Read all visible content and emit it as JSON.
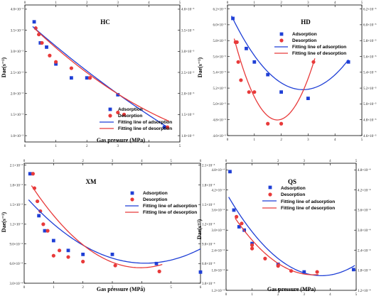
{
  "colors": {
    "adsorption": "#1f3fd6",
    "desorption": "#e83a3a",
    "axis": "#000000"
  },
  "chart_data": [
    {
      "type": "scatter",
      "title": "HC",
      "xlabel": "Gas pressure (MPa)",
      "ylabel": "Dae(s⁻¹)",
      "xlim": [
        0,
        5
      ],
      "ylim": [
        0.00085,
        0.0041
      ],
      "x_ticks": [
        0,
        1,
        2,
        3,
        4,
        5
      ],
      "x_tick_labels": [
        "0",
        "1",
        "2",
        "3",
        "4",
        "5"
      ],
      "y_ticks": [
        0.001,
        0.0015,
        0.002,
        0.0025,
        0.003,
        0.0035,
        0.004
      ],
      "y_tick_labels": [
        "1.0×10⁻³",
        "1.5×10⁻³",
        "2.0×10⁻³",
        "2.5×10⁻³",
        "3.0×10⁻³",
        "3.5×10⁻³",
        "4.0×10⁻³"
      ],
      "grid": false,
      "legend_position": "bottom-right",
      "series": [
        {
          "name": "Adsorption",
          "kind": "points",
          "x": [
            0.3,
            0.5,
            0.7,
            1.0,
            1.5,
            2.0,
            3.0,
            4.5
          ],
          "y": [
            0.0037,
            0.0032,
            0.0031,
            0.0027,
            0.00237,
            0.00237,
            0.00197,
            0.0012
          ]
        },
        {
          "name": "Desorption",
          "kind": "points",
          "x": [
            0.35,
            0.45,
            0.55,
            0.8,
            1.0,
            1.5,
            2.1,
            3.0,
            3.2,
            4.6
          ],
          "y": [
            0.00355,
            0.0034,
            0.0032,
            0.0029,
            0.00275,
            0.0026,
            0.00237,
            0.00155,
            0.0015,
            0.0012
          ]
        },
        {
          "name": "Fitting line of adsorption",
          "kind": "fit",
          "coef": [
            0.003749,
            -0.000648,
            2.05e-05
          ],
          "range": [
            0.25,
            4.55
          ]
        },
        {
          "name": "Fitting line of desorption",
          "kind": "fit",
          "coef": [
            0.003761,
            -0.000719,
            4.28e-05
          ],
          "range": [
            0.3,
            4.65
          ]
        }
      ]
    },
    {
      "type": "scatter",
      "title": "HD",
      "xlabel": "Gas pressure (MPa)",
      "ylabel": "Dae(s⁻¹)",
      "xlim": [
        0,
        5
      ],
      "ylim": [
        4.6e-05,
        6.25e-05
      ],
      "x_ticks": [
        0,
        1,
        2,
        3,
        4,
        5
      ],
      "x_tick_labels": [
        "0",
        "1",
        "2",
        "3",
        "4",
        "5"
      ],
      "y_ticks": [
        4.6e-05,
        4.8e-05,
        5e-05,
        5.2e-05,
        5.4e-05,
        5.6e-05,
        5.8e-05,
        6e-05,
        6.2e-05
      ],
      "y_tick_labels": [
        "4.6×10⁻⁵",
        "4.8×10⁻⁵",
        "5.0×10⁻⁵",
        "5.2×10⁻⁵",
        "5.4×10⁻⁵",
        "5.6×10⁻⁵",
        "5.8×10⁻⁵",
        "6.0×10⁻⁵",
        "6.2×10⁻⁵"
      ],
      "grid": false,
      "legend_position": "top-right",
      "series": [
        {
          "name": "Adsorption",
          "kind": "points",
          "x": [
            0.2,
            0.7,
            1.0,
            1.5,
            2.0,
            3.0,
            4.5
          ],
          "y": [
            6.08e-05,
            5.7e-05,
            5.53e-05,
            5.37e-05,
            5.15e-05,
            5.07e-05,
            5.53e-05
          ]
        },
        {
          "name": "Desorption",
          "kind": "points",
          "x": [
            0.3,
            0.35,
            0.4,
            0.5,
            0.8,
            1.0,
            1.5,
            2.0,
            3.2
          ],
          "y": [
            5.78e-05,
            5.78e-05,
            5.53e-05,
            5.3e-05,
            5.15e-05,
            5.15e-05,
            4.75e-05,
            4.75e-05,
            5.53e-05
          ]
        },
        {
          "name": "Fitting line of adsorption",
          "kind": "fit",
          "coef": [
            6.22e-05,
            -7.41e-06,
            1.32e-06
          ],
          "range": [
            0.15,
            4.5
          ]
        },
        {
          "name": "Fitting line of desorption",
          "kind": "fit",
          "coef": [
            6.17e-05,
            -1.48e-05,
            3.99e-06
          ],
          "range": [
            0.25,
            3.25
          ]
        }
      ]
    },
    {
      "type": "scatter",
      "title": "XM",
      "xlabel": "Gas pressure (MPa)",
      "ylabel": "Dae(s⁻¹)",
      "xlim": [
        0,
        6
      ],
      "ylim": [
        0.0003,
        0.00213
      ],
      "x_ticks": [
        0,
        1,
        2,
        3,
        4,
        5,
        6
      ],
      "x_tick_labels": [
        "0",
        "1",
        "2",
        "3",
        "4",
        "5",
        "6"
      ],
      "y_ticks": [
        0.0003,
        0.0006,
        0.0009,
        0.0012,
        0.0015,
        0.0018,
        0.0021
      ],
      "y_tick_labels": [
        "3.0×10⁻⁴",
        "6.0×10⁻⁴",
        "9.0×10⁻⁴",
        "1.2×10⁻³",
        "1.5×10⁻³",
        "1.8×10⁻³",
        "2.1×10⁻³"
      ],
      "grid": false,
      "legend_position": "top-right",
      "series": [
        {
          "name": "Adsorption",
          "kind": "points",
          "x": [
            0.2,
            0.5,
            0.7,
            1.0,
            1.5,
            2.0,
            3.0,
            4.5,
            6.0
          ],
          "y": [
            0.00197,
            0.00133,
            0.0011,
            0.00095,
            0.0008,
            0.00074,
            0.00074,
            0.0006,
            0.00047
          ]
        },
        {
          "name": "Desorption",
          "kind": "points",
          "x": [
            0.3,
            0.35,
            0.45,
            0.55,
            0.65,
            0.8,
            1.0,
            1.2,
            1.5,
            2.0,
            3.1,
            4.6
          ],
          "y": [
            0.00197,
            0.00175,
            0.00155,
            0.0014,
            0.0012,
            0.0011,
            0.00072,
            0.0008,
            0.0007,
            0.00063,
            0.00057,
            0.00048
          ]
        },
        {
          "name": "Fitting line of adsorption",
          "kind": "fit",
          "coef": [
            0.0016476,
            -0.0005063,
            6.15e-05
          ],
          "range": [
            0.15,
            6.0
          ]
        },
        {
          "name": "Fitting line of desorption",
          "kind": "fit",
          "coef": [
            0.0019637,
            -0.0007212,
            9.11e-05
          ],
          "range": [
            0.25,
            4.7
          ]
        }
      ]
    },
    {
      "type": "scatter",
      "title": "QS",
      "xlabel": "Gas pressure (MPa)",
      "ylabel": "Dae(s⁻¹)",
      "xlim": [
        0,
        5
      ],
      "ylim": [
        0.00012,
        0.0005
      ],
      "x_ticks": [
        0,
        1,
        2,
        3,
        4,
        5
      ],
      "x_tick_labels": [
        "0",
        "1",
        "2",
        "3",
        "4",
        "5"
      ],
      "y_ticks": [
        0.00012,
        0.00018,
        0.00024,
        0.0003,
        0.00036,
        0.00042,
        0.00048
      ],
      "y_tick_labels": [
        "1.2×10⁻⁴",
        "1.8×10⁻⁴",
        "2.4×10⁻⁴",
        "3.0×10⁻⁴",
        "3.6×10⁻⁴",
        "4.2×10⁻⁴",
        "4.8×10⁻⁴"
      ],
      "grid": false,
      "legend_position": "top-right",
      "series": [
        {
          "name": "Adsorption",
          "kind": "points",
          "x": [
            0.15,
            0.3,
            0.5,
            0.7,
            1.0,
            2.0,
            3.0,
            4.9
          ],
          "y": [
            0.000475,
            0.00036,
            0.00031,
            0.0003,
            0.00026,
            0.000198,
            0.000175,
            0.000182
          ]
        },
        {
          "name": "Desorption",
          "kind": "points",
          "x": [
            0.4,
            0.6,
            1.0,
            1.0,
            1.5,
            2.0,
            2.5,
            3.5
          ],
          "y": [
            0.00034,
            0.00032,
            0.000255,
            0.000245,
            0.000215,
            0.000193,
            0.000178,
            0.000175
          ]
        },
        {
          "name": "Fitting line of adsorption",
          "kind": "fit",
          "coef": [
            0.0004123,
            -0.0001356,
            1.85e-05
          ],
          "range": [
            0.1,
            4.95
          ]
        },
        {
          "name": "Fitting line of desorption",
          "kind": "fit",
          "coef": [
            0.0003775,
            -0.0001263,
            1.89e-05
          ],
          "range": [
            0.35,
            3.55
          ]
        }
      ]
    }
  ]
}
